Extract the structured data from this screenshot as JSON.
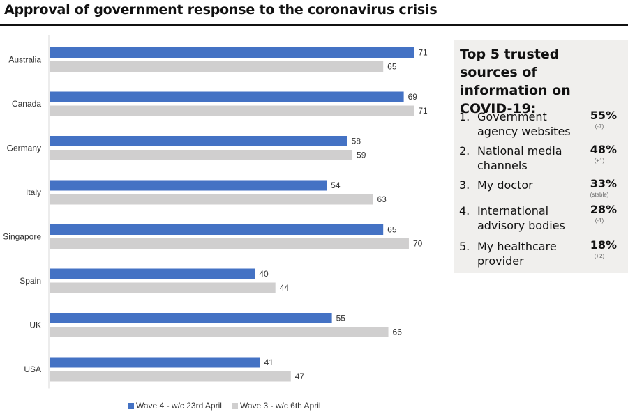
{
  "title": "Approval of government response to the coronavirus crisis",
  "chart_data": {
    "type": "bar",
    "orientation": "horizontal",
    "categories": [
      "Australia",
      "Canada",
      "Germany",
      "Italy",
      "Singapore",
      "Spain",
      "UK",
      "USA"
    ],
    "series": [
      {
        "name": "Wave 4 - w/c 23rd April",
        "color": "#4472c4",
        "values": [
          71,
          69,
          58,
          54,
          65,
          40,
          55,
          41
        ]
      },
      {
        "name": "Wave 3 - w/c 6th April",
        "color": "#d0cfcf",
        "values": [
          65,
          71,
          59,
          63,
          70,
          44,
          66,
          47
        ]
      }
    ],
    "xlim": [
      0,
      71.5
    ],
    "grid": false,
    "legend_position": "bottom"
  },
  "panel": {
    "title": "Top 5 trusted sources of information on COVID-19:",
    "items": [
      {
        "num": "1.",
        "label": "Government agency websites",
        "pct": "55%",
        "change": "(-7)"
      },
      {
        "num": "2.",
        "label": "National media channels",
        "pct": "48%",
        "change": "(+1)"
      },
      {
        "num": "3.",
        "label": "My doctor",
        "pct": "33%",
        "change": "(stable)"
      },
      {
        "num": "4.",
        "label": "International advisory bodies",
        "pct": "28%",
        "change": "(-1)"
      },
      {
        "num": "5.",
        "label": "My healthcare provider",
        "pct": "18%",
        "change": "(+2)"
      }
    ]
  }
}
